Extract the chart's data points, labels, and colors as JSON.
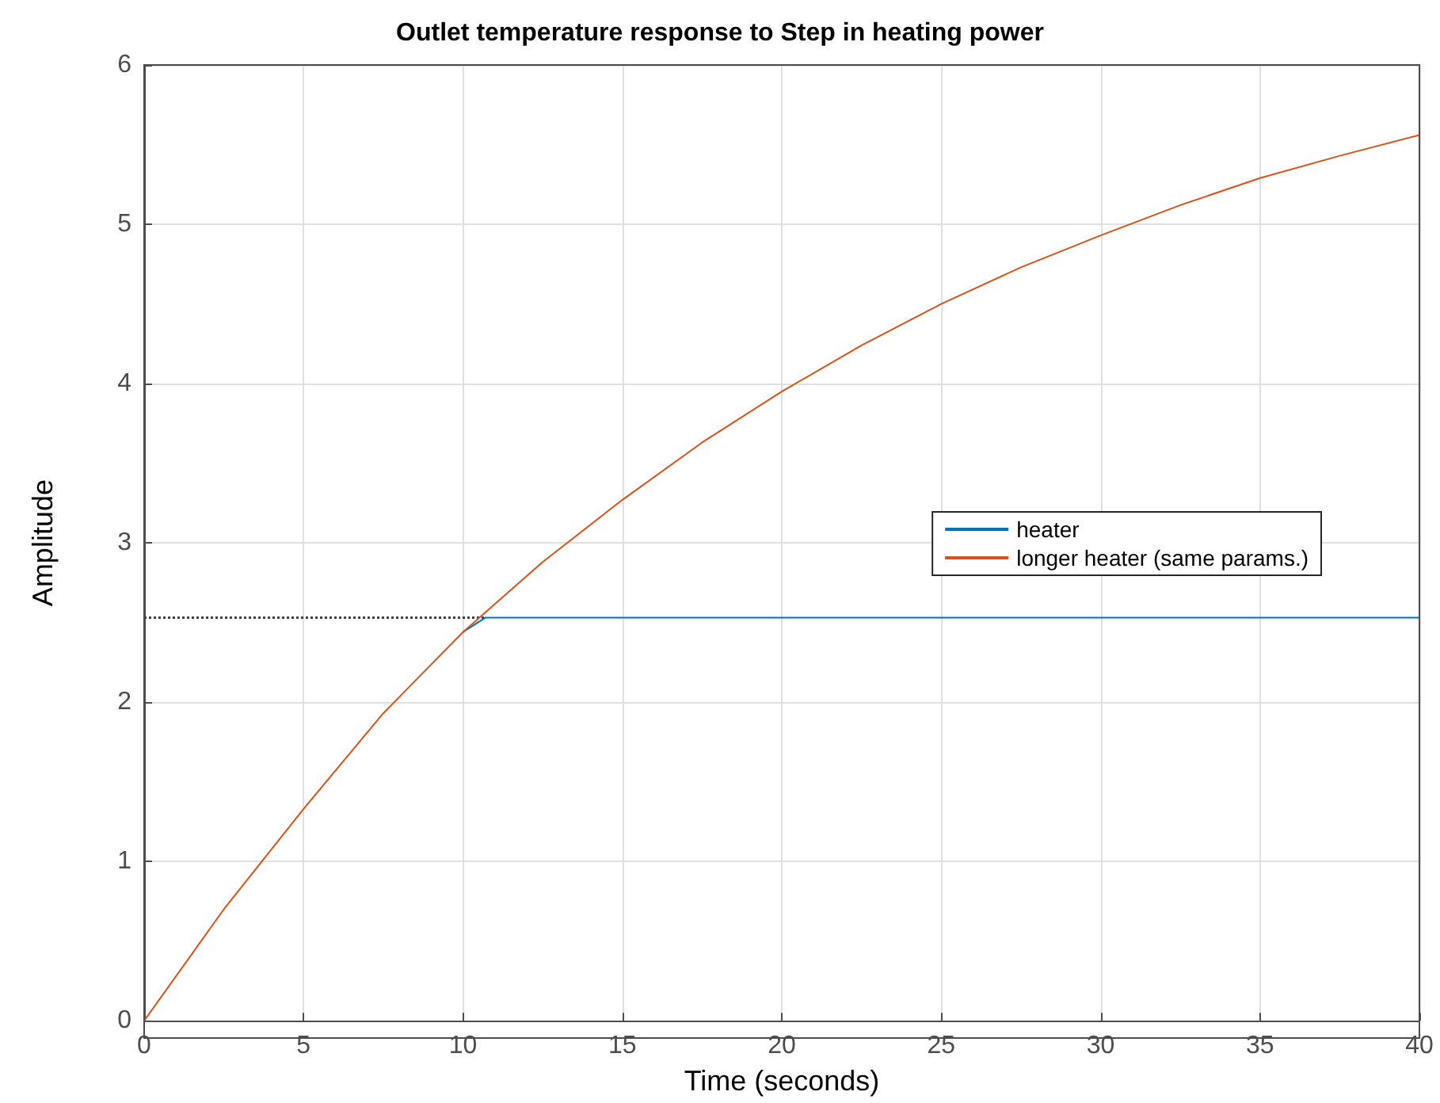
{
  "chart_data": {
    "type": "line",
    "title": "Outlet temperature response to Step in heating power",
    "xlabel": "Time (seconds)",
    "ylabel": "Amplitude",
    "xlim": [
      0,
      40
    ],
    "xticks": [
      0,
      5,
      10,
      15,
      20,
      25,
      30,
      35,
      40
    ],
    "ylim": [
      0,
      6
    ],
    "yticks": [
      0,
      1,
      2,
      3,
      4,
      5,
      6
    ],
    "grid": true,
    "legend": "right",
    "series": [
      {
        "name": "heater",
        "color": "#0072bd",
        "x": [
          10,
          10.7,
          40
        ],
        "values": [
          2.44,
          2.53,
          2.53
        ]
      },
      {
        "name": "longer heater (same params.)",
        "color": "#d95319",
        "x": [
          0,
          2.5,
          5,
          7.5,
          10,
          12.5,
          15,
          17.5,
          20,
          22.5,
          25,
          27.5,
          30,
          32.5,
          35,
          37.5,
          40
        ],
        "values": [
          0,
          0.7,
          1.33,
          1.93,
          2.44,
          2.88,
          3.27,
          3.63,
          3.95,
          4.24,
          4.5,
          4.73,
          4.93,
          5.12,
          5.29,
          5.43,
          5.56
        ]
      },
      {
        "color": "#404040",
        "line_style": "dotted",
        "x": [
          0,
          10.7
        ],
        "values": [
          2.53,
          2.53
        ]
      }
    ]
  }
}
